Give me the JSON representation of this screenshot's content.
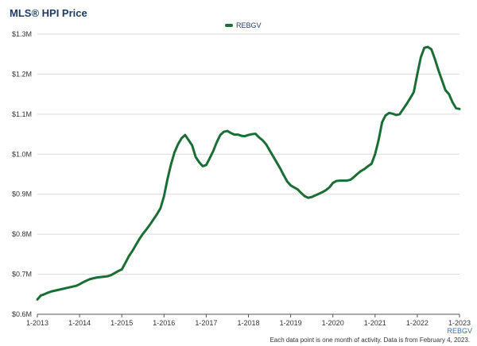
{
  "page": {
    "title": "MLS® HPI Price",
    "footnote": "Each data point is one month of activity. Data is from February 4, 2023."
  },
  "legend": {
    "label": "REBGV"
  },
  "colors": {
    "series": "#1a6e35",
    "grid": "#d9d9d9",
    "axis": "#555555",
    "tick_label": "#333333",
    "x_end_note": "#3d6fae"
  },
  "chart_data": {
    "type": "line",
    "title": "MLS® HPI Price",
    "xlabel": "",
    "ylabel": "",
    "ylim": [
      600000,
      1300000
    ],
    "y_ticks": [
      {
        "value": 600000,
        "label": "$0.6M"
      },
      {
        "value": 700000,
        "label": "$0.7M"
      },
      {
        "value": 800000,
        "label": "$0.8M"
      },
      {
        "value": 900000,
        "label": "$0.9M"
      },
      {
        "value": 1000000,
        "label": "$1.0M"
      },
      {
        "value": 1100000,
        "label": "$1.1M"
      },
      {
        "value": 1200000,
        "label": "$1.2M"
      },
      {
        "value": 1300000,
        "label": "$1.3M"
      }
    ],
    "x_ticks": [
      "1-2013",
      "1-2014",
      "1-2015",
      "1-2016",
      "1-2017",
      "1-2018",
      "1-2019",
      "1-2020",
      "1-2021",
      "1-2022",
      "1-2023"
    ],
    "x_end_note": "REBGV",
    "grid": true,
    "legend_position": "top-center",
    "series": [
      {
        "name": "REBGV",
        "x": [
          "1-2013",
          "2-2013",
          "3-2013",
          "4-2013",
          "5-2013",
          "6-2013",
          "7-2013",
          "8-2013",
          "9-2013",
          "10-2013",
          "11-2013",
          "12-2013",
          "1-2014",
          "2-2014",
          "3-2014",
          "4-2014",
          "5-2014",
          "6-2014",
          "7-2014",
          "8-2014",
          "9-2014",
          "10-2014",
          "11-2014",
          "12-2014",
          "1-2015",
          "2-2015",
          "3-2015",
          "4-2015",
          "5-2015",
          "6-2015",
          "7-2015",
          "8-2015",
          "9-2015",
          "10-2015",
          "11-2015",
          "12-2015",
          "1-2016",
          "2-2016",
          "3-2016",
          "4-2016",
          "5-2016",
          "6-2016",
          "7-2016",
          "8-2016",
          "9-2016",
          "10-2016",
          "11-2016",
          "12-2016",
          "1-2017",
          "2-2017",
          "3-2017",
          "4-2017",
          "5-2017",
          "6-2017",
          "7-2017",
          "8-2017",
          "9-2017",
          "10-2017",
          "11-2017",
          "12-2017",
          "1-2018",
          "2-2018",
          "3-2018",
          "4-2018",
          "5-2018",
          "6-2018",
          "7-2018",
          "8-2018",
          "9-2018",
          "10-2018",
          "11-2018",
          "12-2018",
          "1-2019",
          "2-2019",
          "3-2019",
          "4-2019",
          "5-2019",
          "6-2019",
          "7-2019",
          "8-2019",
          "9-2019",
          "10-2019",
          "11-2019",
          "12-2019",
          "1-2020",
          "2-2020",
          "3-2020",
          "4-2020",
          "5-2020",
          "6-2020",
          "7-2020",
          "8-2020",
          "9-2020",
          "10-2020",
          "11-2020",
          "12-2020",
          "1-2021",
          "2-2021",
          "3-2021",
          "4-2021",
          "5-2021",
          "6-2021",
          "7-2021",
          "8-2021",
          "9-2021",
          "10-2021",
          "11-2021",
          "12-2021",
          "1-2022",
          "2-2022",
          "3-2022",
          "4-2022",
          "5-2022",
          "6-2022",
          "7-2022",
          "8-2022",
          "9-2022",
          "10-2022",
          "11-2022",
          "12-2022",
          "1-2023"
        ],
        "values": [
          637000,
          647000,
          650000,
          654000,
          657000,
          659000,
          661000,
          663000,
          665000,
          667000,
          669000,
          671000,
          675000,
          680000,
          684000,
          688000,
          690000,
          692000,
          693000,
          694000,
          695000,
          698000,
          703000,
          708000,
          712000,
          728000,
          745000,
          758000,
          773000,
          788000,
          801000,
          812000,
          824000,
          837000,
          850000,
          865000,
          895000,
          938000,
          975000,
          1005000,
          1025000,
          1040000,
          1048000,
          1035000,
          1022000,
          993000,
          980000,
          970000,
          973000,
          990000,
          1008000,
          1030000,
          1048000,
          1056000,
          1058000,
          1053000,
          1049000,
          1049000,
          1046000,
          1045000,
          1048000,
          1050000,
          1051000,
          1042000,
          1035000,
          1025000,
          1010000,
          995000,
          980000,
          965000,
          948000,
          932000,
          922000,
          917000,
          912000,
          903000,
          895000,
          891000,
          893000,
          897000,
          901000,
          905000,
          910000,
          917000,
          928000,
          933000,
          934000,
          934000,
          934000,
          936000,
          943000,
          951000,
          958000,
          963000,
          970000,
          976000,
          1000000,
          1035000,
          1080000,
          1097000,
          1103000,
          1101000,
          1098000,
          1100000,
          1113000,
          1126000,
          1140000,
          1155000,
          1200000,
          1242000,
          1266000,
          1268000,
          1262000,
          1238000,
          1210000,
          1185000,
          1160000,
          1150000,
          1130000,
          1115000,
          1113000
        ]
      }
    ]
  }
}
